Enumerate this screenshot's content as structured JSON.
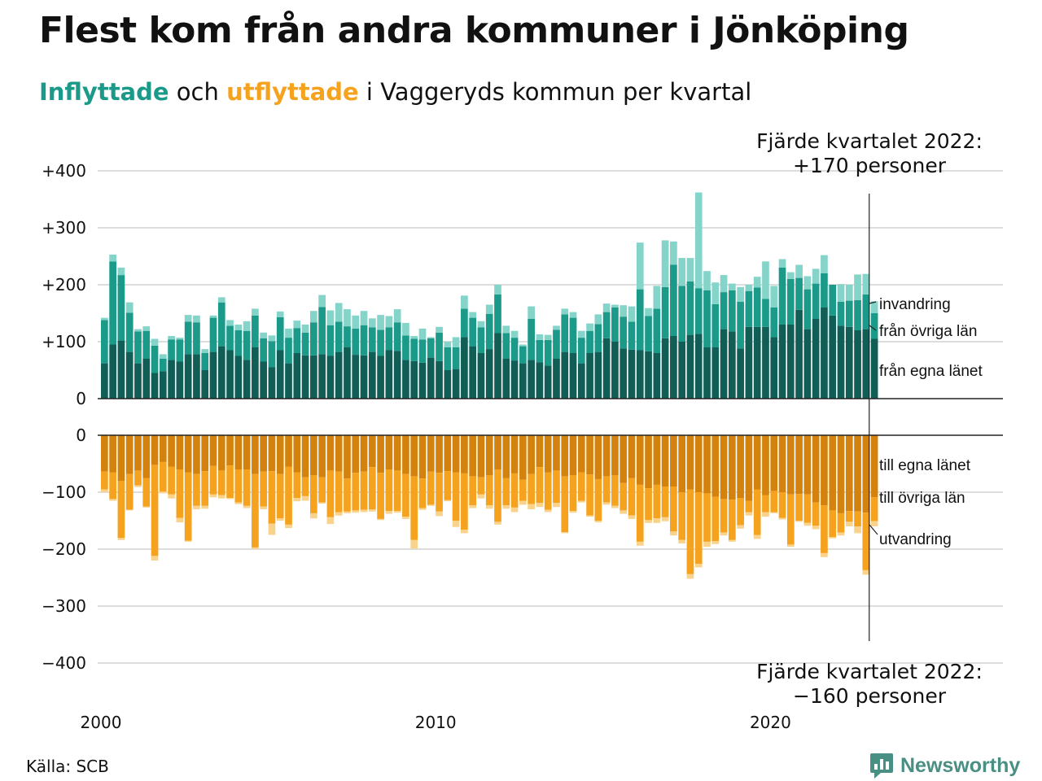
{
  "title": "Flest kom från andra kommuner i Jönköping",
  "subtitle": {
    "part1": "Inflyttade",
    "part2": " och ",
    "part3": "utflyttade",
    "part4": " i Vaggeryds kommun per kvartal"
  },
  "colors": {
    "in_own": "#115e57",
    "in_other": "#1b9a8a",
    "in_immig": "#85d4c9",
    "out_own": "#d3820e",
    "out_other": "#f5a21e",
    "out_emig": "#f9d38c",
    "in_text": "#1b9a8a",
    "out_text": "#f5a21e",
    "grid": "#dddddd",
    "axis": "#222222",
    "brand": "#4a8f84"
  },
  "source": "Källa: SCB",
  "brand": {
    "name": "Newsworthy",
    "icon": "newsworthy-logo-icon"
  },
  "chart_data": {
    "type": "bar",
    "stacked": true,
    "x_start": "2000 Q1",
    "x_end": "2022 Q4",
    "x_ticks": [
      "2000",
      "2010",
      "2020"
    ],
    "in_panel": {
      "ylim": [
        0,
        400
      ],
      "y_ticks": [
        0,
        100,
        200,
        300,
        400
      ],
      "y_tick_labels": [
        "0",
        "+100",
        "+200",
        "+300",
        "+400"
      ],
      "series": [
        {
          "name": "från egna länet",
          "color_key": "in_own",
          "values": [
            62,
            95,
            102,
            82,
            62,
            70,
            45,
            48,
            68,
            65,
            78,
            78,
            50,
            82,
            92,
            85,
            75,
            68,
            90,
            65,
            55,
            85,
            62,
            80,
            76,
            76,
            78,
            75,
            82,
            90,
            77,
            76,
            82,
            75,
            85,
            84,
            68,
            66,
            63,
            72,
            66,
            50,
            52,
            108,
            92,
            80,
            87,
            115,
            70,
            67,
            62,
            68,
            64,
            58,
            70,
            82,
            80,
            62,
            80,
            82,
            106,
            100,
            88,
            86,
            85,
            83,
            80,
            106,
            110,
            100,
            112,
            114,
            90,
            90,
            122,
            118,
            88,
            126,
            126,
            126,
            108,
            130,
            130,
            156,
            122,
            140,
            160,
            146,
            128,
            126,
            120,
            122,
            105
          ],
          "note": "bottom segment; derived from the stacked totals"
        },
        {
          "name": "från övriga län",
          "color_key": "in_other",
          "values": [
            76,
            146,
            115,
            69,
            56,
            49,
            48,
            22,
            36,
            39,
            57,
            56,
            30,
            60,
            77,
            43,
            45,
            51,
            56,
            41,
            46,
            58,
            45,
            44,
            40,
            58,
            83,
            54,
            53,
            37,
            46,
            53,
            43,
            46,
            40,
            50,
            43,
            39,
            41,
            34,
            50,
            40,
            38,
            50,
            50,
            45,
            62,
            68,
            45,
            40,
            30,
            72,
            39,
            45,
            51,
            66,
            62,
            45,
            39,
            49,
            46,
            60,
            56,
            49,
            107,
            62,
            78,
            90,
            125,
            98,
            94,
            80,
            100,
            76,
            65,
            72,
            82,
            63,
            69,
            49,
            52,
            100,
            80,
            56,
            70,
            62,
            60,
            54,
            42,
            46,
            53,
            61,
            45
          ],
          "note": "middle segment"
        },
        {
          "name": "invandring",
          "color_key": "in_immig",
          "values": [
            4,
            12,
            13,
            18,
            4,
            8,
            12,
            8,
            6,
            3,
            12,
            12,
            7,
            4,
            9,
            10,
            10,
            17,
            12,
            10,
            10,
            10,
            16,
            13,
            14,
            20,
            21,
            26,
            33,
            30,
            23,
            25,
            16,
            26,
            20,
            23,
            22,
            5,
            19,
            2,
            10,
            10,
            18,
            23,
            10,
            11,
            16,
            17,
            13,
            12,
            3,
            22,
            10,
            9,
            7,
            10,
            10,
            12,
            13,
            17,
            15,
            5,
            20,
            27,
            82,
            14,
            40,
            82,
            41,
            49,
            41,
            168,
            34,
            38,
            30,
            12,
            26,
            11,
            19,
            66,
            38,
            15,
            12,
            23,
            23,
            26,
            32,
            0,
            31,
            28,
            45,
            36,
            21
          ],
          "note": "top segment"
        }
      ],
      "totals": [
        142,
        253,
        230,
        169,
        122,
        127,
        105,
        78,
        110,
        107,
        147,
        146,
        87,
        146,
        178,
        138,
        130,
        136,
        158,
        116,
        111,
        153,
        123,
        137,
        130,
        154,
        182,
        155,
        168,
        157,
        146,
        154,
        141,
        147,
        145,
        157,
        133,
        110,
        123,
        108,
        126,
        100,
        108,
        181,
        152,
        136,
        165,
        200,
        128,
        119,
        95,
        162,
        113,
        112,
        128,
        158,
        152,
        119,
        132,
        148,
        167,
        165,
        164,
        162,
        274,
        159,
        198,
        278,
        276,
        247,
        247,
        362,
        224,
        204,
        217,
        202,
        196,
        200,
        214,
        241,
        198,
        245,
        222,
        235,
        215,
        228,
        252,
        200,
        201,
        200,
        218,
        219,
        171
      ],
      "annotations": [
        "invandring",
        "från övriga län",
        "från egna länet"
      ]
    },
    "out_panel": {
      "ylim": [
        -400,
        0
      ],
      "y_ticks": [
        0,
        -100,
        -200,
        -300,
        -400
      ],
      "y_tick_labels": [
        "0",
        "−100",
        "−200",
        "−300",
        "−400"
      ],
      "series": [
        {
          "name": "till egna länet",
          "color_key": "out_own",
          "values": [
            -64,
            -65,
            -80,
            -68,
            -62,
            -75,
            -52,
            -47,
            -55,
            -60,
            -65,
            -68,
            -63,
            -54,
            -62,
            -53,
            -60,
            -60,
            -68,
            -64,
            -63,
            -68,
            -55,
            -65,
            -74,
            -70,
            -74,
            -62,
            -64,
            -76,
            -66,
            -64,
            -56,
            -66,
            -60,
            -62,
            -68,
            -72,
            -76,
            -64,
            -66,
            -63,
            -65,
            -67,
            -72,
            -74,
            -70,
            -60,
            -75,
            -67,
            -78,
            -68,
            -56,
            -65,
            -62,
            -72,
            -70,
            -65,
            -69,
            -77,
            -72,
            -70,
            -84,
            -75,
            -87,
            -93,
            -87,
            -90,
            -90,
            -100,
            -95,
            -100,
            -102,
            -108,
            -112,
            -113,
            -110,
            -115,
            -95,
            -105,
            -98,
            -100,
            -104,
            -103,
            -104,
            -118,
            -123,
            -132,
            -137,
            -133,
            -134,
            -136,
            -109
          ],
          "note": "top segment, from the zero line"
        },
        {
          "name": "till övriga län",
          "color_key": "out_other",
          "values": [
            -31,
            -47,
            -100,
            -63,
            -26,
            -50,
            -160,
            -52,
            -49,
            -85,
            -120,
            -56,
            -61,
            -50,
            -43,
            -57,
            -58,
            -64,
            -129,
            -61,
            -92,
            -78,
            -102,
            -45,
            -33,
            -67,
            -44,
            -82,
            -71,
            -58,
            -66,
            -67,
            -74,
            -81,
            -73,
            -71,
            -75,
            -112,
            -52,
            -58,
            -68,
            -51,
            -85,
            -99,
            -51,
            -30,
            -53,
            -92,
            -48,
            -60,
            -37,
            -53,
            -63,
            -66,
            -57,
            -98,
            -63,
            -50,
            -72,
            -73,
            -46,
            -54,
            -48,
            -66,
            -100,
            -56,
            -59,
            -54,
            -79,
            -84,
            -149,
            -126,
            -85,
            -78,
            -59,
            -71,
            -48,
            -20,
            -80,
            -30,
            -37,
            -45,
            -88,
            -47,
            -50,
            -41,
            -84,
            -47,
            -34,
            -19,
            -26,
            -101,
            -42
          ]
        },
        {
          "name": "utvandring",
          "color_key": "out_emig",
          "values": [
            -5,
            -3,
            -4,
            -1,
            -3,
            -2,
            -8,
            -3,
            -7,
            -8,
            -2,
            -6,
            -5,
            -5,
            -6,
            -2,
            -3,
            -4,
            -3,
            -5,
            -20,
            -4,
            -6,
            -6,
            -8,
            -9,
            -2,
            -12,
            -6,
            -3,
            -4,
            -4,
            -4,
            -2,
            -5,
            -3,
            -4,
            -15,
            -3,
            -2,
            -8,
            -2,
            -11,
            -6,
            -5,
            -7,
            -6,
            -5,
            -6,
            -8,
            -7,
            -9,
            -7,
            -4,
            -7,
            -2,
            -3,
            -3,
            -2,
            -3,
            -4,
            -4,
            -6,
            -6,
            -7,
            -5,
            -8,
            -7,
            -7,
            -6,
            -8,
            -6,
            -9,
            -5,
            -5,
            -3,
            -6,
            -6,
            -7,
            -8,
            -2,
            -3,
            -4,
            -2,
            -5,
            -6,
            -7,
            -2,
            -5,
            -8,
            -12,
            -8,
            -9
          ],
          "note": "bottom segment"
        }
      ],
      "totals": [
        -100,
        -115,
        -184,
        -132,
        -91,
        -127,
        -220,
        -102,
        -111,
        -153,
        -187,
        -130,
        -129,
        -109,
        -111,
        -112,
        -121,
        -128,
        -200,
        -130,
        -175,
        -150,
        -163,
        -116,
        -115,
        -146,
        -120,
        -156,
        -141,
        -137,
        -136,
        -135,
        -134,
        -149,
        -138,
        -136,
        -147,
        -199,
        -131,
        -124,
        -142,
        -116,
        -161,
        -172,
        -128,
        -111,
        -129,
        -157,
        -129,
        -135,
        -122,
        -130,
        -126,
        -135,
        -126,
        -172,
        -136,
        -118,
        -143,
        -153,
        -122,
        -128,
        -138,
        -147,
        -194,
        -154,
        -154,
        -151,
        -176,
        -190,
        -252,
        -232,
        -196,
        -191,
        -176,
        -187,
        -164,
        -141,
        -182,
        -143,
        -137,
        -148,
        -196,
        -152,
        -159,
        -165,
        -214,
        -181,
        -176,
        -160,
        -172,
        -245,
        -160
      ],
      "annotations": [
        "till egna länet",
        "till övriga län",
        "utvandring"
      ]
    },
    "callout_top": [
      "Fjärde kvartalet 2022:",
      "+170 personer"
    ],
    "callout_bottom": [
      "Fjärde kvartalet 2022:",
      "−160 personer"
    ]
  }
}
